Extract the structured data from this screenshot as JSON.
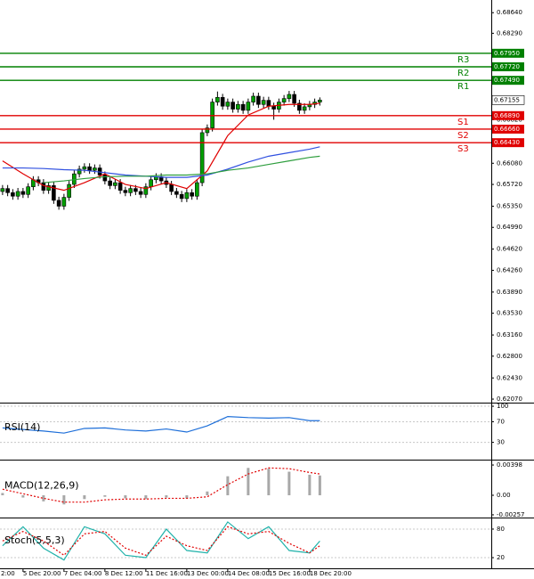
{
  "chart_data": [
    {
      "type": "candlestick",
      "up_color": "#00a000",
      "down_color": "#000000",
      "open": [
        0.656,
        0.6565,
        0.6558,
        0.6552,
        0.656,
        0.6555,
        0.6568,
        0.658,
        0.6575,
        0.6562,
        0.657,
        0.6545,
        0.6535,
        0.655,
        0.6572,
        0.659,
        0.6598,
        0.6602,
        0.6596,
        0.66,
        0.6588,
        0.6578,
        0.657,
        0.6575,
        0.6562,
        0.6558,
        0.6565,
        0.656,
        0.6555,
        0.6568,
        0.658,
        0.6585,
        0.6578,
        0.6572,
        0.656,
        0.6555,
        0.6548,
        0.6558,
        0.6552,
        0.6575,
        0.666,
        0.6668,
        0.6712,
        0.672,
        0.6705,
        0.6712,
        0.67,
        0.6708,
        0.6698,
        0.6712,
        0.6722,
        0.6708,
        0.6715,
        0.6705,
        0.67,
        0.6712,
        0.6718,
        0.6725,
        0.671,
        0.6698,
        0.6704,
        0.6708,
        0.6712
      ],
      "high": [
        0.6571,
        0.6571,
        0.6564,
        0.6566,
        0.6566,
        0.6574,
        0.6586,
        0.6586,
        0.6581,
        0.6576,
        0.6576,
        0.6551,
        0.6556,
        0.6578,
        0.6596,
        0.6604,
        0.6608,
        0.6608,
        0.6606,
        0.6606,
        0.6594,
        0.6584,
        0.6581,
        0.6581,
        0.6568,
        0.6571,
        0.6571,
        0.6566,
        0.6574,
        0.6586,
        0.6591,
        0.6591,
        0.6584,
        0.6578,
        0.6566,
        0.6561,
        0.6564,
        0.6564,
        0.6581,
        0.6666,
        0.6674,
        0.6718,
        0.673,
        0.6726,
        0.6718,
        0.6718,
        0.6714,
        0.6714,
        0.6718,
        0.6728,
        0.6728,
        0.6721,
        0.6721,
        0.6711,
        0.6718,
        0.6724,
        0.6731,
        0.6731,
        0.6716,
        0.671,
        0.6714,
        0.6718,
        0.672
      ],
      "low": [
        0.6554,
        0.6552,
        0.6546,
        0.6546,
        0.6549,
        0.6549,
        0.6562,
        0.6569,
        0.6556,
        0.6556,
        0.6539,
        0.6529,
        0.6529,
        0.6544,
        0.6566,
        0.6584,
        0.6592,
        0.659,
        0.659,
        0.6582,
        0.6572,
        0.6564,
        0.6564,
        0.6556,
        0.6552,
        0.6552,
        0.6554,
        0.6549,
        0.6549,
        0.6562,
        0.6574,
        0.6572,
        0.6566,
        0.6554,
        0.6549,
        0.6542,
        0.6542,
        0.6546,
        0.6546,
        0.6569,
        0.6654,
        0.6662,
        0.6706,
        0.6699,
        0.6699,
        0.6694,
        0.6694,
        0.6692,
        0.6692,
        0.6706,
        0.6702,
        0.6702,
        0.6699,
        0.6682,
        0.6694,
        0.6706,
        0.6712,
        0.6704,
        0.6692,
        0.6692,
        0.6698,
        0.6702,
        0.6706
      ],
      "close": [
        0.6565,
        0.6558,
        0.6552,
        0.656,
        0.6555,
        0.6568,
        0.658,
        0.6575,
        0.6562,
        0.657,
        0.6545,
        0.6535,
        0.655,
        0.6572,
        0.659,
        0.6598,
        0.6602,
        0.6596,
        0.66,
        0.6588,
        0.6578,
        0.657,
        0.6575,
        0.6562,
        0.6558,
        0.6565,
        0.656,
        0.6555,
        0.6568,
        0.658,
        0.6585,
        0.6578,
        0.6572,
        0.656,
        0.6555,
        0.6548,
        0.6558,
        0.6552,
        0.6575,
        0.666,
        0.6668,
        0.6712,
        0.672,
        0.6705,
        0.6712,
        0.67,
        0.6708,
        0.6698,
        0.6712,
        0.6722,
        0.6708,
        0.6715,
        0.6705,
        0.67,
        0.6712,
        0.6718,
        0.6725,
        0.671,
        0.6698,
        0.6704,
        0.6708,
        0.6712,
        0.67155
      ],
      "series": [
        {
          "color": "#e00000",
          "x": [
            0,
            4,
            8,
            12,
            16,
            20,
            24,
            28,
            32,
            36,
            40,
            44,
            48,
            52,
            56,
            60,
            62
          ],
          "values": [
            0.6612,
            0.659,
            0.657,
            0.6562,
            0.6575,
            0.659,
            0.6572,
            0.6565,
            0.6575,
            0.6565,
            0.6595,
            0.6655,
            0.669,
            0.6705,
            0.6708,
            0.6708,
            0.671
          ]
        },
        {
          "color": "#3050e0",
          "x": [
            0,
            4,
            8,
            12,
            16,
            20,
            24,
            28,
            32,
            36,
            40,
            44,
            48,
            52,
            56,
            60,
            62
          ],
          "values": [
            0.66,
            0.66,
            0.6599,
            0.6597,
            0.6596,
            0.6592,
            0.6588,
            0.6586,
            0.6584,
            0.6584,
            0.6588,
            0.6598,
            0.661,
            0.662,
            0.6626,
            0.6632,
            0.6636
          ]
        },
        {
          "color": "#2e9e3e",
          "x": [
            0,
            4,
            8,
            12,
            16,
            20,
            24,
            28,
            32,
            36,
            40,
            44,
            48,
            52,
            56,
            60,
            62
          ],
          "values": [
            null,
            null,
            0.6575,
            0.6578,
            0.6582,
            0.6585,
            0.6586,
            0.6586,
            0.6588,
            0.6588,
            0.659,
            0.6596,
            0.66,
            0.6606,
            0.6612,
            0.6618,
            0.662
          ]
        }
      ],
      "levels": [
        {
          "name": "R3",
          "value": 0.6795,
          "label": "0.67950",
          "color": "#008000"
        },
        {
          "name": "R2",
          "value": 0.6772,
          "label": "0.67720",
          "color": "#008000"
        },
        {
          "name": "R1",
          "value": 0.6749,
          "label": "0.67490",
          "color": "#008000"
        },
        {
          "name": "S1",
          "value": 0.6689,
          "label": "0.66890",
          "color": "#e00000"
        },
        {
          "name": "S2",
          "value": 0.6666,
          "label": "0.66660",
          "color": "#e00000"
        },
        {
          "name": "S3",
          "value": 0.6643,
          "label": "0.66430",
          "color": "#e00000"
        }
      ],
      "current_price": {
        "value": 0.67155,
        "label": "0.67155"
      },
      "xlim": [
        -0.5,
        95.5
      ],
      "xticks": [
        {
          "value": -4,
          "label": "2:00"
        },
        {
          "value": 4,
          "label": "5 Dec 20:00"
        },
        {
          "value": 12,
          "label": "7 Dec 04:00"
        },
        {
          "value": 20,
          "label": "8 Dec 12:00"
        },
        {
          "value": 28,
          "label": "11 Dec 16:00"
        },
        {
          "value": 36,
          "label": "13 Dec 00:00"
        },
        {
          "value": 44,
          "label": "14 Dec 08:00"
        },
        {
          "value": 52,
          "label": "15 Dec 16:00"
        },
        {
          "value": 60,
          "label": "18 Dec 20:00"
        }
      ],
      "ylim": [
        0.6201,
        0.6878
      ],
      "yticks": [
        {
          "value": 0.6864,
          "label": "0.68640"
        },
        {
          "value": 0.6829,
          "label": "0.68290"
        },
        {
          "value": 0.6682,
          "label": "0.66820"
        },
        {
          "value": 0.6608,
          "label": "0.66080"
        },
        {
          "value": 0.6572,
          "label": "0.65720"
        },
        {
          "value": 0.6535,
          "label": "0.65350"
        },
        {
          "value": 0.6499,
          "label": "0.64990"
        },
        {
          "value": 0.6462,
          "label": "0.64620"
        },
        {
          "value": 0.6426,
          "label": "0.64260"
        },
        {
          "value": 0.6389,
          "label": "0.63890"
        },
        {
          "value": 0.6353,
          "label": "0.63530"
        },
        {
          "value": 0.6316,
          "label": "0.63160"
        },
        {
          "value": 0.628,
          "label": "0.62800"
        },
        {
          "value": 0.6243,
          "label": "0.62430"
        },
        {
          "value": 0.6207,
          "label": "0.62070"
        }
      ],
      "grid": false
    },
    {
      "type": "line",
      "title": "RSI(14)",
      "series": [
        {
          "color": "#1e6fd9",
          "x": [
            0,
            4,
            8,
            12,
            16,
            20,
            24,
            28,
            32,
            36,
            40,
            44,
            48,
            52,
            56,
            60,
            62
          ],
          "values": [
            58,
            55,
            52,
            48,
            57,
            58,
            54,
            52,
            56,
            50,
            62,
            80,
            78,
            77,
            78,
            72,
            72
          ]
        }
      ],
      "ylim": [
        0,
        107
      ],
      "yticks": [
        100,
        70,
        30
      ],
      "grid": true
    },
    {
      "type": "combo",
      "title": "MACD(12,26,9)",
      "series": [
        {
          "type": "bar",
          "color": "#a8a8a8",
          "x": [
            0,
            4,
            8,
            12,
            16,
            20,
            24,
            28,
            32,
            36,
            40,
            44,
            48,
            52,
            56,
            60,
            62
          ],
          "values": [
            0.0003,
            -0.0003,
            -0.0008,
            -0.0012,
            -0.0005,
            -0.0002,
            -0.0004,
            -0.0005,
            -0.0003,
            -0.0004,
            0.0005,
            0.0025,
            0.0036,
            0.0035,
            0.0031,
            0.0027,
            0.0026
          ]
        },
        {
          "type": "line",
          "style": "dotted",
          "color": "#e00000",
          "x": [
            0,
            4,
            8,
            12,
            16,
            20,
            24,
            28,
            32,
            36,
            40,
            44,
            48,
            52,
            56,
            60,
            62
          ],
          "values": [
            0.0008,
            0.0002,
            -0.0004,
            -0.0009,
            -0.0009,
            -0.0006,
            -0.0005,
            -0.0005,
            -0.0004,
            -0.0004,
            -0.0002,
            0.0014,
            0.0028,
            0.0036,
            0.0035,
            0.003,
            0.0028
          ]
        }
      ],
      "ylim": [
        -0.00281,
        0.00457
      ],
      "yticks": [
        {
          "value": 0.00398,
          "label": "0.00398"
        },
        {
          "value": 0,
          "label": "0.00"
        },
        {
          "value": -0.00257,
          "label": "-0.00257"
        }
      ],
      "grid": false
    },
    {
      "type": "line",
      "title": "Stoch(5,5,3)",
      "series": [
        {
          "color": "#20b2aa",
          "x": [
            0,
            4,
            8,
            12,
            16,
            20,
            24,
            28,
            32,
            36,
            40,
            44,
            48,
            52,
            56,
            60,
            62
          ],
          "values": [
            45,
            85,
            40,
            15,
            85,
            70,
            25,
            20,
            80,
            35,
            30,
            95,
            60,
            85,
            35,
            30,
            55
          ]
        },
        {
          "color": "#e00000",
          "style": "dotted",
          "x": [
            0,
            4,
            8,
            12,
            16,
            20,
            24,
            28,
            32,
            36,
            40,
            44,
            48,
            52,
            56,
            60,
            62
          ],
          "values": [
            55,
            75,
            55,
            25,
            70,
            75,
            40,
            25,
            65,
            45,
            35,
            85,
            70,
            75,
            50,
            30,
            45
          ]
        }
      ],
      "ylim": [
        -2.4,
        102.4
      ],
      "yticks": [
        80,
        20
      ],
      "grid": true
    }
  ]
}
